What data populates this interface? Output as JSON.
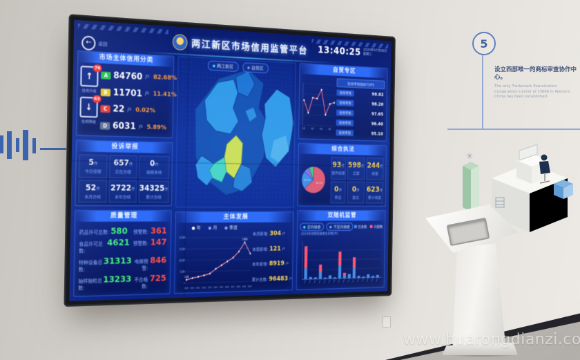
{
  "watermark": "www.huarongdianzi.com",
  "wall": {
    "badge_number": "5",
    "caption_cn": "设立西部唯一的商标审查协作中心。",
    "caption_en": "The only Trademark Examination Cooperation Center of CNIPA in Western China has been established."
  },
  "screen": {
    "back_label": "返回",
    "title": "两江新区市场信用监管平台",
    "clock": {
      "time": "13:40:25",
      "date": "2020年07月08日",
      "weekday": "星期三"
    },
    "map_toggles": [
      {
        "label": "两江新区"
      },
      {
        "label": "自贸区"
      }
    ],
    "credit": {
      "title": "市场主体信用分类",
      "up": {
        "badge": "76",
        "label": "信用升级"
      },
      "down": {
        "badge": "63",
        "label": "信用降级"
      },
      "rows": [
        {
          "grade": "A",
          "count": "84760",
          "unit": "户",
          "percent": "82.68%",
          "color": "#23c24f"
        },
        {
          "grade": "B",
          "count": "11701",
          "unit": "户",
          "percent": "11.41%",
          "color": "#e6c727"
        },
        {
          "grade": "C",
          "count": "22",
          "unit": "户",
          "percent": "0.02%",
          "color": "#e73a2e"
        },
        {
          "grade": "D",
          "count": "6031",
          "unit": "户",
          "percent": "5.89%",
          "color": "#5d7295"
        }
      ]
    },
    "complaints": {
      "title": "投诉举报",
      "cells": [
        {
          "value": "5",
          "unit": "件",
          "label": "今日受理"
        },
        {
          "value": "657",
          "unit": "件",
          "label": "正在办理"
        },
        {
          "value": "0",
          "unit": "件",
          "label": "逾期未结"
        },
        {
          "value": "52",
          "unit": "件",
          "label": "本月办结"
        },
        {
          "value": "2722",
          "unit": "件",
          "label": "本年办结"
        },
        {
          "value": "34325",
          "unit": "件",
          "label": "累计办结"
        }
      ]
    },
    "quality": {
      "title": "质量管理",
      "rows": [
        {
          "label": "药品许可总数:",
          "value": "580",
          "label2": "预警数:",
          "value2": "361"
        },
        {
          "label": "食品许可总数:",
          "value": "4621",
          "label2": "预警数:",
          "value2": "147"
        },
        {
          "label": "特种设备总数:",
          "value": "31313",
          "label2": "电梯预警:",
          "value2": "846"
        },
        {
          "label": "抽样抽检总数:",
          "value": "13233",
          "label2": "不合格数:",
          "value2": "725"
        }
      ]
    },
    "development": {
      "title": "主体发展",
      "legend": [
        "年",
        "月",
        "季度"
      ],
      "stats": [
        {
          "label": "本月新增:",
          "value": "304",
          "unit": "户"
        },
        {
          "label": "本周新增:",
          "value": "121",
          "unit": "户"
        },
        {
          "label": "本年新增:",
          "value": "8919",
          "unit": "户"
        },
        {
          "label": "累计总数:",
          "value": "96483",
          "unit": "户"
        }
      ]
    },
    "ftz": {
      "title": "自贸专区",
      "list_header": "信用考核指标TOP5",
      "rows": [
        {
          "tag": "信用考核",
          "value": "98.82"
        },
        {
          "tag": "信用考核",
          "value": "98.20"
        },
        {
          "tag": "信用考核",
          "value": "97.65"
        },
        {
          "tag": "信用考核",
          "value": "96.40"
        },
        {
          "tag": "信用考核",
          "value": "95.10"
        }
      ]
    },
    "enforcement": {
      "title": "综合执法",
      "cells": [
        {
          "value": "93",
          "unit": "件",
          "label": "案件线索"
        },
        {
          "value": "598",
          "unit": "件",
          "label": "立案"
        },
        {
          "value": "244",
          "unit": "件",
          "label": "结案"
        },
        {
          "value": "0",
          "unit": "件",
          "label": "移送"
        },
        {
          "value": "0",
          "unit": "件",
          "label": "复议"
        },
        {
          "value": "623",
          "unit": "件",
          "label": "累计结案"
        }
      ]
    },
    "random_check": {
      "title": "双随机监管",
      "toggles": [
        "定向抽查",
        "不定向抽查"
      ],
      "legend": [
        {
          "label": "任务数",
          "color": "#3f8fe8"
        },
        {
          "label": "问题数",
          "color": "#ff5570"
        }
      ],
      "axis_note": "2019年双随机抽查任务数(件)"
    }
  },
  "chart_data": [
    {
      "id": "development",
      "type": "line",
      "title": "主体发展",
      "x": [
        "2009",
        "2010",
        "2011",
        "2012",
        "2013",
        "2014",
        "2015",
        "2016",
        "2017",
        "2018",
        "2019",
        "2020"
      ],
      "values": [
        1438,
        2150,
        2680,
        3250,
        3980,
        6050,
        7600,
        9250,
        10900,
        13600,
        17694,
        12600
      ],
      "ylim": [
        0,
        20000
      ],
      "yticks": [
        0,
        5000,
        10000,
        15000,
        20000
      ],
      "point_labels": {
        "0": "1438",
        "10": "17694"
      },
      "line_color": "#ff8f9e",
      "legend_position": "top"
    },
    {
      "id": "ftz",
      "type": "line",
      "title": "自贸专区",
      "x": [
        "1月",
        "2月",
        "3月",
        "4月",
        "5月",
        "6月",
        "7月",
        "8月"
      ],
      "values": [
        760,
        580,
        800,
        790,
        920,
        560,
        720,
        740
      ],
      "ylim": [
        400,
        1000
      ],
      "line_color": "#ff6e7e"
    },
    {
      "id": "enforcement_pie",
      "type": "pie",
      "title": "综合执法",
      "slices": [
        {
          "label": "63.7%",
          "value": 63.7,
          "color": "#e25b72"
        },
        {
          "label": "22.1%",
          "value": 22.1,
          "color": "#3f8fe8"
        },
        {
          "label": "",
          "value": 7.4,
          "color": "#8e6fe8"
        },
        {
          "label": "",
          "value": 6.8,
          "color": "#49c97a"
        }
      ]
    },
    {
      "id": "random_bars",
      "type": "bar",
      "title": "双随机监管",
      "categories": [
        "1",
        "2",
        "3",
        "4",
        "5",
        "6",
        "7",
        "8",
        "9",
        "10",
        "11",
        "12",
        "13",
        "14",
        "15",
        "16"
      ],
      "series": [
        {
          "name": "任务数",
          "color": "#3f8fe8",
          "values": [
            26,
            5,
            4,
            16,
            3,
            8,
            3,
            30,
            7,
            10,
            24,
            5,
            3,
            8,
            4,
            6
          ]
        },
        {
          "name": "问题数",
          "color": "#ff5570",
          "values": [
            52,
            0,
            0,
            18,
            0,
            0,
            0,
            34,
            6,
            0,
            26,
            0,
            0,
            0,
            0,
            0
          ]
        }
      ],
      "ylim": [
        0,
        90
      ],
      "stacked": true
    }
  ]
}
